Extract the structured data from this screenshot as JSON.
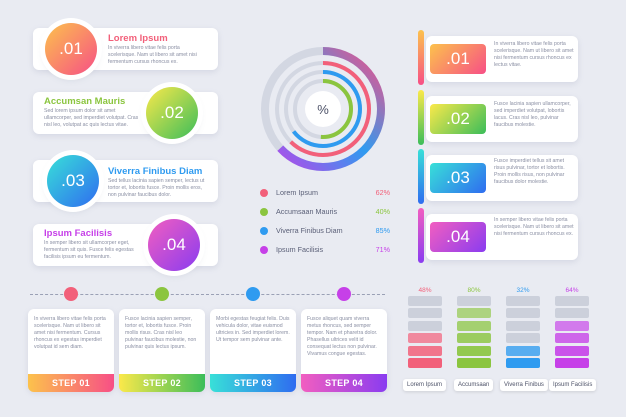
{
  "left_items": [
    {
      "num": ".01",
      "title": "Lorem Ipsum",
      "title_color": "#f2607a",
      "text": "In viverra libero vitae felis porta scelerisque. Nam ut libero sit amet nisi fermentum cursus rhoncus ex."
    },
    {
      "num": ".02",
      "title": "Accumsan Mauris",
      "title_color": "#8bc53f",
      "text": "Sed lorem ipsum dolor sit amet ullamcorper, sed imperdiet volutpat. Cras nisl leo, volutpat ac quis lectus vitae."
    },
    {
      "num": ".03",
      "title": "Viverra Finibus Diam",
      "title_color": "#2f9bf0",
      "text": "Sed tellus lacinia sapien semper, lectus ut tortor et, lobortis fusce. Proin mollis eros, non pulvinar faucibus dolor."
    },
    {
      "num": ".04",
      "title": "Ipsum Facilisis",
      "title_color": "#c640e8",
      "text": "In semper libero sit ullamcorper eget, fermentum sit quis. Fusce felis egestas facilisis ipsum eu fermentum."
    }
  ],
  "donut": {
    "center_label": "%"
  },
  "legend": [
    {
      "label": "Lorem Ipsum",
      "pct": "62%",
      "color": "#f2607a"
    },
    {
      "label": "Accumsaan Mauris",
      "pct": "40%",
      "color": "#8bc53f"
    },
    {
      "label": "Viverra Finibus Diam",
      "pct": "85%",
      "color": "#2f9bf0"
    },
    {
      "label": "Ipsum Facilisis",
      "pct": "71%",
      "color": "#c640e8"
    }
  ],
  "right_items": [
    {
      "num": ".01",
      "text": "In viverra libero vitae felis porta scelerisque. Nam ut libero sit amet nisi fermentum cursus rhoncus ex lectus vitae."
    },
    {
      "num": ".02",
      "text": "Fusce lacinia sapien ullamcorper, sed imperdiet volutpat, lobortis lacus. Cras nisl leo, pulvinar faucibus molestie."
    },
    {
      "num": ".03",
      "text": "Fusce imperdiet tellus sit amet risus pulvinar, tortor et lobortis. Proin mollis risus, non pulvinar faucibus dolor molestie."
    },
    {
      "num": ".04",
      "text": "In semper libero vitae felis porta scelerisque. Nam ut libero sit amet nisi fermentum cursus rhoncus ex."
    }
  ],
  "steps": [
    {
      "label": "STEP 01",
      "text": "In viverra libero vitae felis porta scelerisque. Nam ut libero sit amet nisi fermentum. Cursus rhoncus ex egestas imperdiet volutpat id sem diam."
    },
    {
      "label": "STEP 02",
      "text": "Fusce lacinia sapien semper, tortor et, lobortis fusce. Proin mollis risus. Cras nisl leo pulvinar faucibus molestie, non pulvinar quis lectus ipsum."
    },
    {
      "label": "STEP 03",
      "text": "Morbi egestas feugiat felis. Duis vehicula dolor, vitae euismod ultricies in. Sed imperdiet lorem. Ut tempor sem pulvinar ante."
    },
    {
      "label": "STEP 04",
      "text": "Fusce aliquet quam viverra metus rhoncus, sed semper tempor. Nam et pharetra dolor. Phasellus ultrices velit id consequat lectus non pulvinar. Vivamus congue egestas."
    }
  ],
  "chart_data": {
    "type": "bar",
    "categories": [
      "Lorem Ipsum",
      "Accumsaan",
      "Viverra Finibus",
      "Ipsum Facilisis"
    ],
    "values": [
      48,
      80,
      32,
      64
    ],
    "value_labels": [
      "48%",
      "80%",
      "32%",
      "64%"
    ],
    "ylim": [
      0,
      100
    ],
    "colors": [
      "#f2607a",
      "#8bc53f",
      "#2f9bf0",
      "#c640e8"
    ]
  }
}
